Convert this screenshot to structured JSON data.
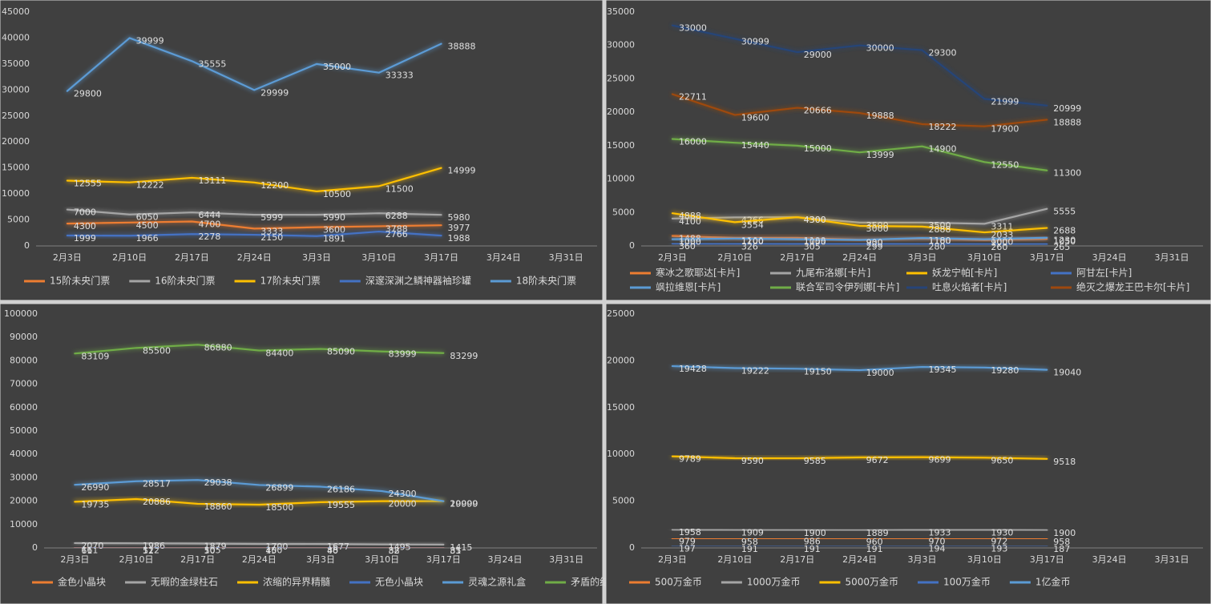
{
  "chart_data": [
    {
      "type": "line",
      "categories": [
        "2月3日",
        "2月10日",
        "2月17日",
        "2月24日",
        "3月3日",
        "3月10日",
        "3月17日",
        "3月24日",
        "3月31日"
      ],
      "ylim": [
        0,
        45000
      ],
      "yticks": [
        0,
        5000,
        10000,
        15000,
        20000,
        25000,
        30000,
        35000,
        40000,
        45000
      ],
      "legend": "bottom",
      "series": [
        {
          "name": "15阶未央门票",
          "color": "#ed7d31",
          "values": [
            4300,
            4500,
            4700,
            3333,
            3600,
            3788,
            3977,
            null,
            null
          ]
        },
        {
          "name": "16阶未央门票",
          "color": "#a5a5a5",
          "values": [
            7000,
            6050,
            6444,
            5999,
            5990,
            6288,
            5980,
            null,
            null
          ]
        },
        {
          "name": "17阶未央门票",
          "color": "#ffc000",
          "values": [
            12555,
            12222,
            13111,
            12200,
            10500,
            11500,
            14999,
            null,
            null
          ]
        },
        {
          "name": "深邃深渊之鳞神器袖珍罐",
          "color": "#4472c4",
          "values": [
            1999,
            1966,
            2278,
            2150,
            1891,
            2766,
            1988,
            null,
            null
          ]
        },
        {
          "name": "18阶未央门票",
          "color": "#5b9bd5",
          "values": [
            29800,
            39999,
            35555,
            29999,
            35000,
            33333,
            38888,
            null,
            null
          ]
        }
      ]
    },
    {
      "type": "line",
      "categories": [
        "2月3日",
        "2月10日",
        "2月17日",
        "2月24日",
        "3月3日",
        "3月10日",
        "3月17日",
        "3月24日",
        "3月31日"
      ],
      "ylim": [
        0,
        35000
      ],
      "yticks": [
        0,
        5000,
        10000,
        15000,
        20000,
        25000,
        30000,
        35000
      ],
      "legend": "bottom",
      "series": [
        {
          "name": "寒冰之歌耶达[卡片]",
          "color": "#ed7d31",
          "values": [
            1488,
            1200,
            1199,
            930,
            1100,
            900,
            1050,
            null,
            null
          ]
        },
        {
          "name": "九尾布洛娜[卡片]",
          "color": "#a5a5a5",
          "values": [
            4100,
            4266,
            4300,
            3500,
            3500,
            3311,
            5555,
            null,
            null
          ]
        },
        {
          "name": "妖龙宁帕[卡片]",
          "color": "#ffc000",
          "values": [
            4888,
            3554,
            4300,
            3000,
            2888,
            2033,
            2688,
            null,
            null
          ]
        },
        {
          "name": "阿甘左[卡片]",
          "color": "#4472c4",
          "values": [
            360,
            326,
            305,
            299,
            280,
            260,
            265,
            null,
            null
          ]
        },
        {
          "name": "飒拉维恩[卡片]",
          "color": "#5b9bd5",
          "values": [
            1000,
            1100,
            1000,
            900,
            1180,
            1000,
            1230,
            null,
            null
          ]
        },
        {
          "name": "联合军司令伊列娜[卡片]",
          "color": "#70ad47",
          "values": [
            16000,
            15440,
            15000,
            13999,
            14900,
            12550,
            11300,
            null,
            null
          ]
        },
        {
          "name": "吐息火焰者[卡片]",
          "color": "#264478",
          "values": [
            33000,
            30999,
            29000,
            30000,
            29300,
            21999,
            20999,
            null,
            null
          ]
        },
        {
          "name": "绝灭之爆龙王巴卡尔[卡片]",
          "color": "#9e480e",
          "values": [
            22711,
            19600,
            20666,
            19888,
            18222,
            17900,
            18888,
            null,
            null
          ]
        }
      ]
    },
    {
      "type": "line",
      "categories": [
        "2月3日",
        "2月10日",
        "2月17日",
        "2月24日",
        "3月3日",
        "3月10日",
        "3月17日",
        "3月24日",
        "3月31日"
      ],
      "ylim": [
        0,
        100000
      ],
      "yticks": [
        0,
        10000,
        20000,
        30000,
        40000,
        50000,
        60000,
        70000,
        80000,
        90000,
        100000
      ],
      "legend": "bottom",
      "series": [
        {
          "name": "金色小晶块",
          "color": "#ed7d31",
          "values": [
            161,
            112,
            105,
            100,
            88,
            82,
            81,
            null,
            null
          ]
        },
        {
          "name": "无暇的金绿柱石",
          "color": "#a5a5a5",
          "values": [
            2070,
            1986,
            1879,
            1700,
            1677,
            1495,
            1415,
            null,
            null
          ]
        },
        {
          "name": "浓缩的异界精髓",
          "color": "#ffc000",
          "values": [
            19735,
            20886,
            18860,
            18500,
            19555,
            20000,
            20000,
            null,
            null
          ]
        },
        {
          "name": "无色小晶块",
          "color": "#4472c4",
          "values": [
            61,
            52,
            50,
            45,
            40,
            38,
            35,
            null,
            null
          ]
        },
        {
          "name": "灵魂之源礼盒",
          "color": "#5b9bd5",
          "values": [
            26990,
            28517,
            29038,
            26899,
            26186,
            24300,
            19999,
            null,
            null
          ]
        },
        {
          "name": "矛盾的结晶体",
          "color": "#70ad47",
          "values": [
            83109,
            85500,
            86880,
            84400,
            85090,
            83999,
            83299,
            null,
            null
          ]
        }
      ]
    },
    {
      "type": "line",
      "categories": [
        "2月3日",
        "2月10日",
        "2月17日",
        "2月24日",
        "3月3日",
        "3月10日",
        "3月17日",
        "3月24日",
        "3月31日"
      ],
      "ylim": [
        0,
        25000
      ],
      "yticks": [
        0,
        5000,
        10000,
        15000,
        20000,
        25000
      ],
      "legend": "bottom",
      "series": [
        {
          "name": "500万金币",
          "color": "#ed7d31",
          "values": [
            979,
            958,
            986,
            960,
            970,
            972,
            958,
            null,
            null
          ]
        },
        {
          "name": "1000万金币",
          "color": "#a5a5a5",
          "values": [
            1958,
            1909,
            1900,
            1889,
            1933,
            1930,
            1900,
            null,
            null
          ]
        },
        {
          "name": "5000万金币",
          "color": "#ffc000",
          "values": [
            9789,
            9590,
            9585,
            9672,
            9699,
            9650,
            9518,
            null,
            null
          ]
        },
        {
          "name": "100万金币",
          "color": "#4472c4",
          "values": [
            197,
            191,
            191,
            191,
            194,
            193,
            187,
            null,
            null
          ]
        },
        {
          "name": "1亿金币",
          "color": "#5b9bd5",
          "values": [
            19428,
            19222,
            19150,
            19000,
            19345,
            19280,
            19040,
            null,
            null
          ]
        }
      ]
    }
  ]
}
